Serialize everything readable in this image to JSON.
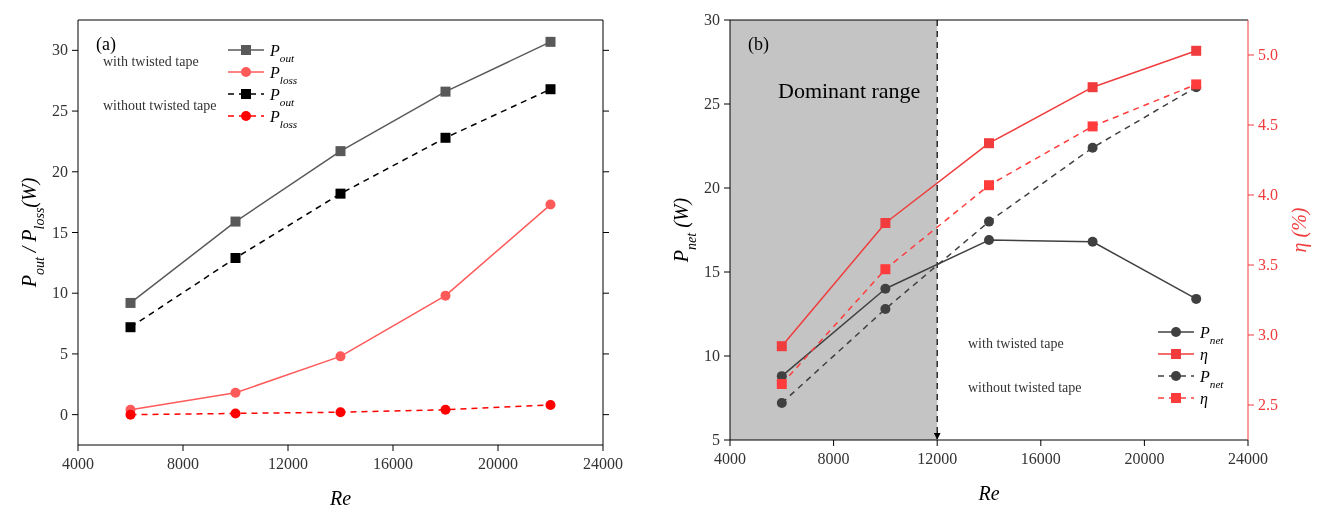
{
  "chart_data": [
    {
      "type": "line",
      "title": "(a)",
      "xlabel": "Re",
      "ylabel": "P$_{out}$ / P$_{loss}$(W)",
      "x": [
        6000,
        10000,
        14000,
        18000,
        22000
      ],
      "xlim": [
        4000,
        24000
      ],
      "xticks": [
        4000,
        8000,
        12000,
        16000,
        20000,
        24000
      ],
      "ylim": [
        -2.5,
        32.5
      ],
      "yticks": [
        0,
        5,
        10,
        15,
        20,
        25,
        30
      ],
      "legend": "top",
      "annotations": [
        "with twisted tape",
        "without twisted tape"
      ],
      "series": [
        {
          "name": "P$_{out}$",
          "color": "#595959",
          "marker": "square",
          "line_style": "solid",
          "values": [
            9.2,
            15.9,
            21.7,
            26.6,
            30.7
          ]
        },
        {
          "name": "P$_{loss}$",
          "color": "#ff5a5a",
          "marker": "circle",
          "line_style": "solid",
          "values": [
            0.4,
            1.8,
            4.8,
            9.8,
            17.3
          ]
        },
        {
          "name": "P$_{out}$",
          "color": "#000000",
          "marker": "square",
          "line_style": "dashed",
          "values": [
            7.2,
            12.9,
            18.2,
            22.8,
            26.8
          ]
        },
        {
          "name": "P$_{loss}$",
          "color": "#ff0000",
          "marker": "circle",
          "line_style": "dashed",
          "values": [
            0.0,
            0.1,
            0.2,
            0.4,
            0.8
          ]
        }
      ]
    },
    {
      "type": "line",
      "title": "(b)",
      "xlabel": "Re",
      "ylabel": "P$_{net}$ (W)",
      "y2label": "η (%)",
      "x": [
        6000,
        10000,
        14000,
        18000,
        22000
      ],
      "xlim": [
        4000,
        24000
      ],
      "xticks": [
        4000,
        8000,
        12000,
        16000,
        20000,
        24000
      ],
      "ylim": [
        5,
        30
      ],
      "yticks": [
        5,
        10,
        15,
        20,
        25,
        30
      ],
      "y2lim": [
        2.25,
        5.25
      ],
      "y2ticks": [
        {
          "value": 2.5,
          "label": "2.5"
        },
        {
          "value": 3,
          "label": "3.0"
        },
        {
          "value": 3.5,
          "label": "3.5"
        },
        {
          "value": 4,
          "label": "4.0"
        },
        {
          "value": 4.5,
          "label": "4.5"
        },
        {
          "value": 5,
          "label": "5.0"
        }
      ],
      "legend": "bottom right",
      "annotations": [
        "with twisted tape",
        "without twisted tape"
      ],
      "bands": [
        {
          "axis": "x",
          "from": 4000,
          "to": 12000,
          "label": "Dominant range",
          "color": "#c4c4c4"
        }
      ],
      "ref_lines": [
        {
          "axis": "x",
          "value": 12000,
          "color": "#000000",
          "line_style": "dashed"
        }
      ],
      "series": [
        {
          "name": "P$_{net}$",
          "color": "#404040",
          "marker": "circle",
          "line_style": "solid",
          "values": [
            8.8,
            14.0,
            16.9,
            16.8,
            13.4
          ]
        },
        {
          "name": "η",
          "color": "#f03c3c",
          "marker": "square",
          "line_style": "solid",
          "axis": "y2",
          "values": [
            2.92,
            3.8,
            4.37,
            4.77,
            5.03
          ]
        },
        {
          "name": "P$_{net}$",
          "color": "#404040",
          "marker": "circle",
          "line_style": "dashed",
          "values": [
            7.2,
            12.8,
            18.0,
            22.4,
            26.0
          ]
        },
        {
          "name": "η",
          "color": "#ff3c3c",
          "marker": "square",
          "line_style": "dashed",
          "axis": "y2",
          "values": [
            2.65,
            3.47,
            4.07,
            4.49,
            4.79
          ]
        }
      ]
    }
  ]
}
